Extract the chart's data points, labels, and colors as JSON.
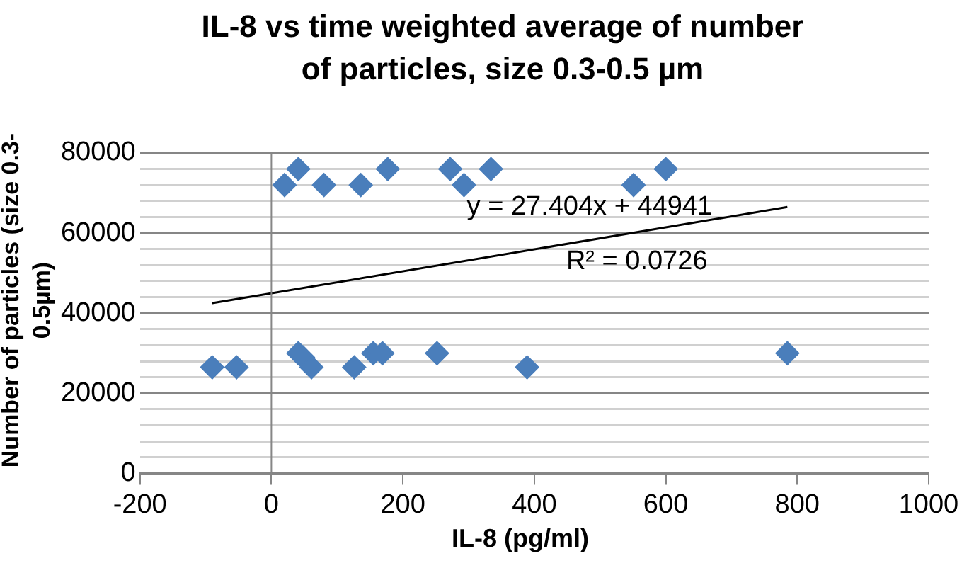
{
  "chart_data": {
    "type": "scatter",
    "title": "IL-8 vs time weighted average of number of particles, size 0.3-0.5 µm",
    "xlabel": "IL-8 (pg/ml)",
    "ylabel": "Number of particles (size 0.3-0.5µm)",
    "xlim": [
      -200,
      1000
    ],
    "xticks": [
      -200,
      0,
      200,
      400,
      600,
      800,
      1000
    ],
    "ylim": [
      0,
      80000
    ],
    "yticks": [
      0,
      {
        "value": 4000,
        "label": null
      },
      {
        "value": 8000,
        "label": null
      },
      {
        "value": 12000,
        "label": null
      },
      {
        "value": 16000,
        "label": null
      },
      20000,
      {
        "value": 24000,
        "label": null
      },
      {
        "value": 28000,
        "label": null
      },
      {
        "value": 32000,
        "label": null
      },
      {
        "value": 36000,
        "label": null
      },
      40000,
      {
        "value": 44000,
        "label": null
      },
      {
        "value": 48000,
        "label": null
      },
      {
        "value": 52000,
        "label": null
      },
      {
        "value": 56000,
        "label": null
      },
      60000,
      {
        "value": 64000,
        "label": null
      },
      {
        "value": 68000,
        "label": null
      },
      {
        "value": 72000,
        "label": null
      },
      {
        "value": 76000,
        "label": null
      },
      80000
    ],
    "grid": "y",
    "legend": false,
    "marker": "diamond",
    "series": [
      {
        "color": "#4a7ebb",
        "x": [
          20,
          41,
          80,
          136,
          177,
          272,
          293,
          334,
          551,
          600,
          -90,
          -53,
          41,
          48,
          61,
          126,
          155,
          169,
          252,
          389,
          785
        ],
        "values": [
          72000,
          76000,
          72000,
          72000,
          76000,
          76000,
          72000,
          76000,
          72000,
          76000,
          26500,
          26500,
          30000,
          29000,
          26500,
          26500,
          30000,
          30000,
          30000,
          26500,
          30000
        ]
      },
      {
        "type": "line",
        "color": "#000000",
        "marker": "none",
        "x": [
          -90,
          785
        ],
        "values": [
          42500,
          66500
        ]
      }
    ],
    "annotations": [
      "y = 27.404x + 44941",
      "R² = 0.0726"
    ]
  }
}
